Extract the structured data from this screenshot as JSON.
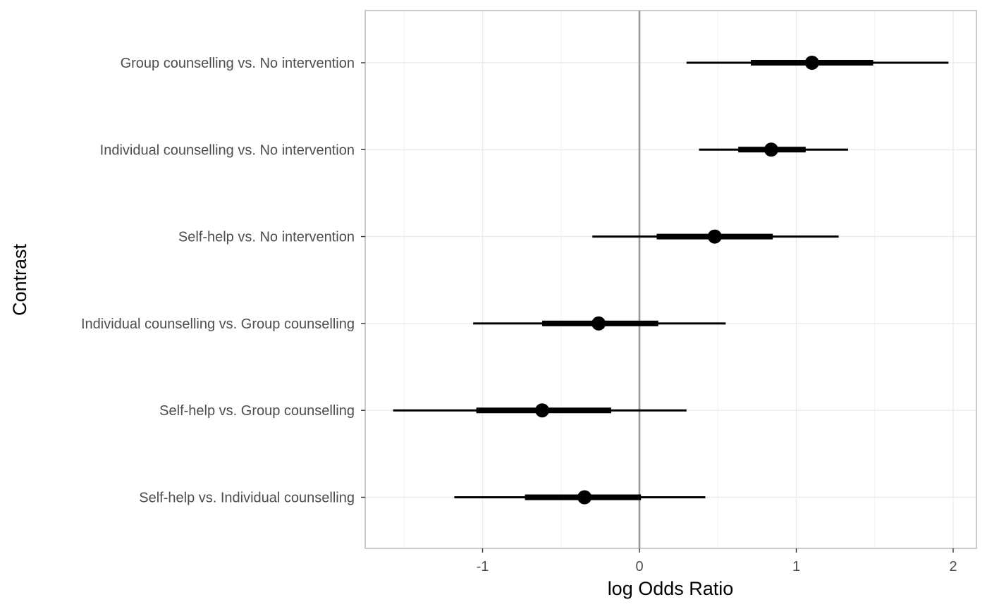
{
  "chart_data": {
    "type": "forest",
    "xlabel": "log Odds Ratio",
    "ylabel": "Contrast",
    "xlim": [
      -1.75,
      2.15
    ],
    "xticks": [
      -1,
      0,
      1,
      2
    ],
    "xtick_labels": [
      "-1",
      "0",
      "1",
      "2"
    ],
    "reference_line": 0,
    "grid": true,
    "contrasts": [
      {
        "label": "Group counselling vs. No intervention",
        "estimate": 1.1,
        "inner": [
          0.71,
          1.49
        ],
        "outer": [
          0.3,
          1.97
        ]
      },
      {
        "label": "Individual counselling vs. No intervention",
        "estimate": 0.84,
        "inner": [
          0.63,
          1.06
        ],
        "outer": [
          0.38,
          1.33
        ]
      },
      {
        "label": "Self-help vs. No intervention",
        "estimate": 0.48,
        "inner": [
          0.11,
          0.85
        ],
        "outer": [
          -0.3,
          1.27
        ]
      },
      {
        "label": "Individual counselling vs. Group counselling",
        "estimate": -0.26,
        "inner": [
          -0.62,
          0.12
        ],
        "outer": [
          -1.06,
          0.55
        ]
      },
      {
        "label": "Self-help vs. Group counselling",
        "estimate": -0.62,
        "inner": [
          -1.04,
          -0.18
        ],
        "outer": [
          -1.57,
          0.3
        ]
      },
      {
        "label": "Self-help vs. Individual counselling",
        "estimate": -0.35,
        "inner": [
          -0.73,
          0.01
        ],
        "outer": [
          -1.18,
          0.42
        ]
      }
    ]
  }
}
